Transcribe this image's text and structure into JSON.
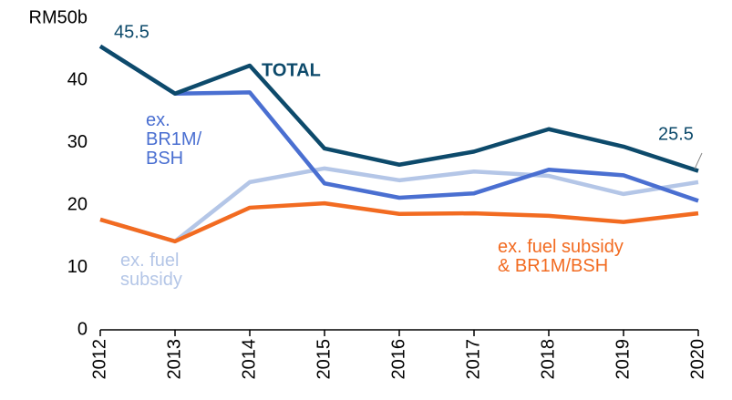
{
  "chart_data": {
    "type": "line",
    "categories": [
      "2012",
      "2013",
      "2014",
      "2015",
      "2016",
      "2017",
      "2018",
      "2019",
      "2020"
    ],
    "series": [
      {
        "name": "TOTAL",
        "color": "#0d4a6b",
        "values": [
          45.5,
          37.9,
          42.4,
          29.1,
          26.5,
          28.6,
          32.2,
          29.4,
          25.5
        ]
      },
      {
        "name": "ex.\nBR1M/\nBSH",
        "color": "#4a6fd1",
        "values": [
          45.5,
          37.9,
          38.1,
          23.5,
          21.2,
          21.9,
          25.7,
          24.8,
          20.7
        ]
      },
      {
        "name": "ex. fuel\nsubsidy",
        "color": "#b4c6e7",
        "values": [
          17.7,
          14.2,
          23.7,
          25.9,
          24.0,
          25.4,
          24.7,
          21.8,
          23.7
        ]
      },
      {
        "name": "ex. fuel subsidy\n& BR1M/BSH",
        "color": "#f26b21",
        "values": [
          17.7,
          14.2,
          19.6,
          20.3,
          18.6,
          18.7,
          18.3,
          17.3,
          18.7
        ]
      }
    ],
    "ylim": [
      0,
      50
    ],
    "yticks": [
      0,
      10,
      20,
      30,
      40,
      {
        "value": 50,
        "label": "RM50b"
      }
    ]
  }
}
